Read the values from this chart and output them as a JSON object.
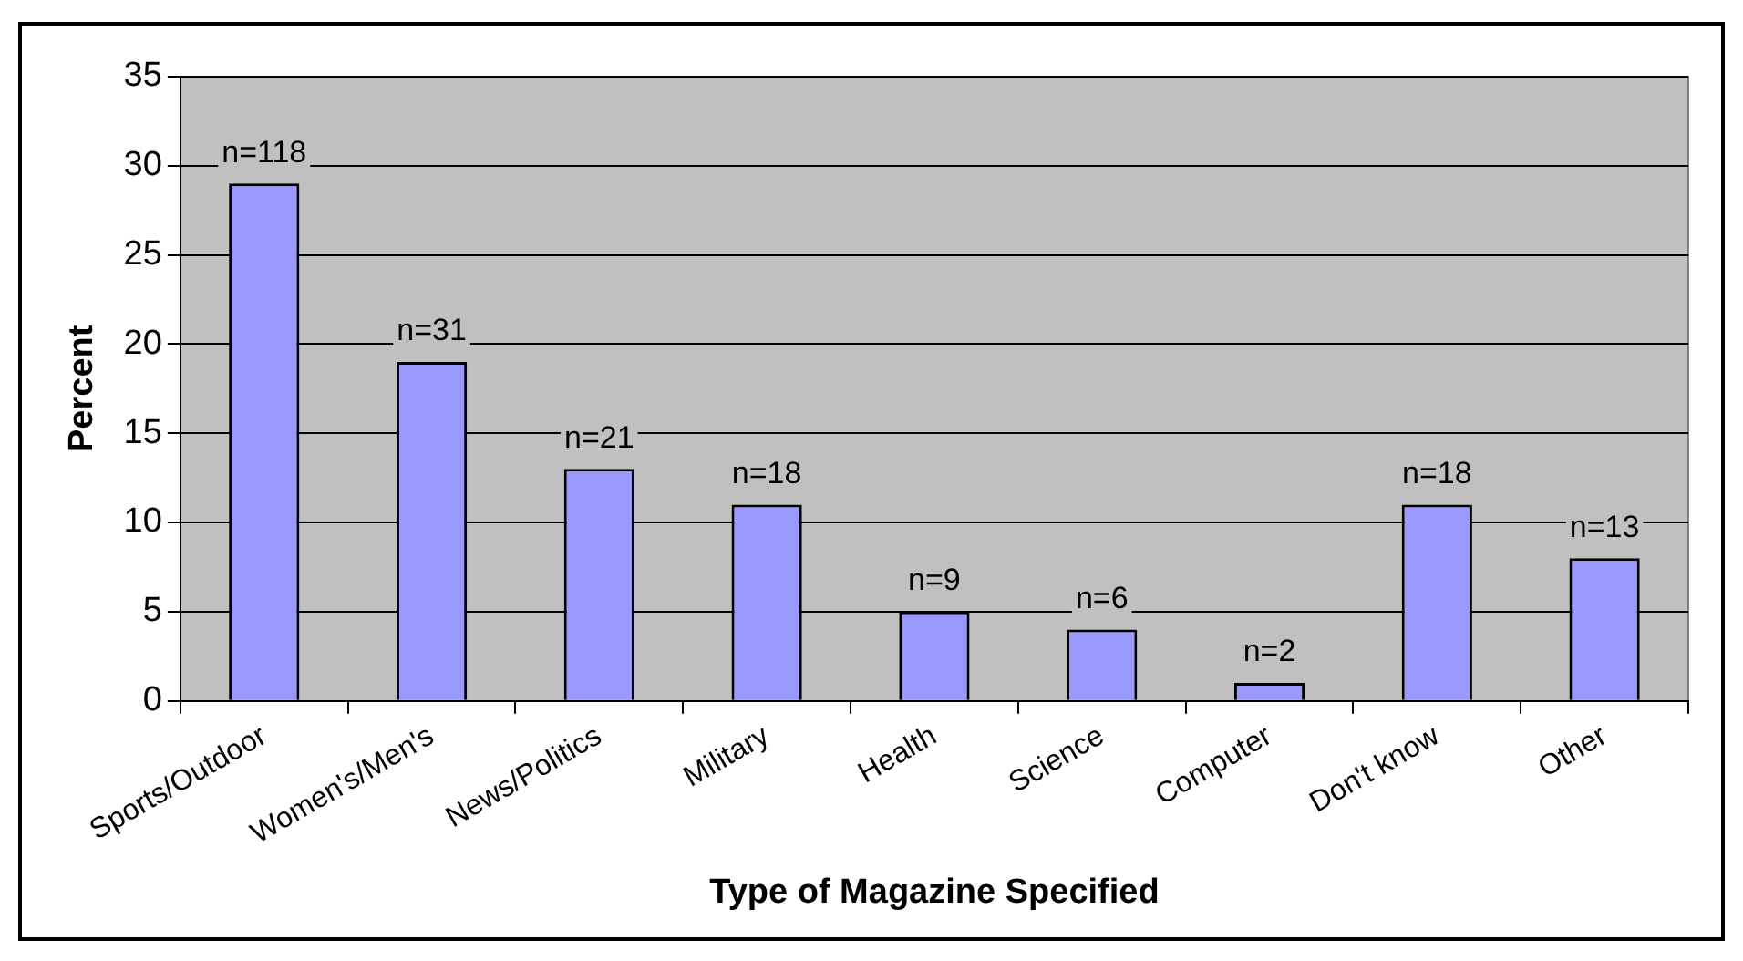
{
  "chart_data": {
    "type": "bar",
    "xlabel": "Type of Magazine Specified",
    "ylabel": "Percent",
    "categories": [
      "Sports/Outdoor",
      "Women's/Men's",
      "News/Politics",
      "Military",
      "Health",
      "Science",
      "Computer",
      "Don't know",
      "Other"
    ],
    "values": [
      29,
      19,
      13,
      11,
      5,
      4,
      1,
      11,
      8
    ],
    "color": "#9999ff",
    "ylim": [
      0,
      35
    ],
    "yticks": [
      0,
      5,
      10,
      15,
      20,
      25,
      30,
      35
    ],
    "grid": "y",
    "legend": false,
    "annotations": [
      {
        "text": "n=118",
        "x": "Sports/Outdoor",
        "y": 29
      },
      {
        "text": "n=31",
        "x": "Women's/Men's",
        "y": 19
      },
      {
        "text": "n=21",
        "x": "News/Politics",
        "y": 13
      },
      {
        "text": "n=18",
        "x": "Military",
        "y": 11
      },
      {
        "text": "n=9",
        "x": "Health",
        "y": 5
      },
      {
        "text": "n=6",
        "x": "Science",
        "y": 4
      },
      {
        "text": "n=2",
        "x": "Computer",
        "y": 1
      },
      {
        "text": "n=18",
        "x": "Don't know",
        "y": 11
      },
      {
        "text": "n=13",
        "x": "Other",
        "y": 8
      }
    ]
  }
}
